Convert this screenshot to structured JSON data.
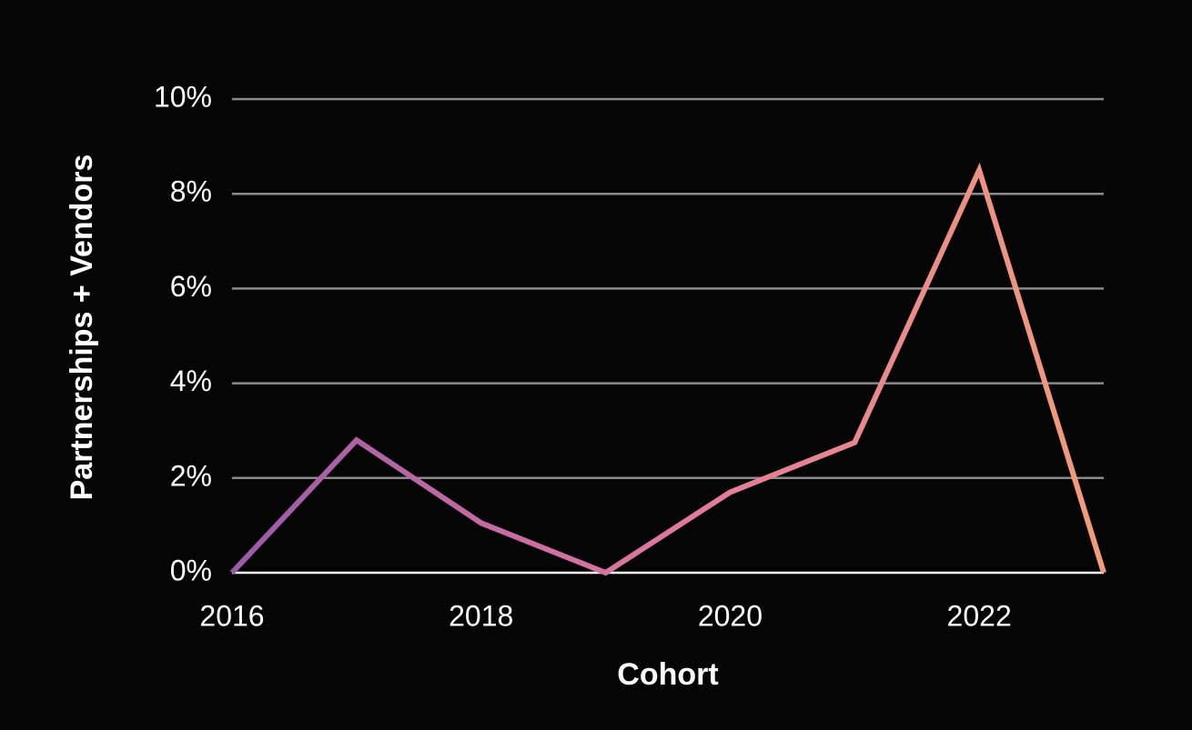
{
  "chart_data": {
    "type": "line",
    "x_label": "Cohort",
    "y_label": "Partnerships + Vendors",
    "x": [
      2016,
      2017,
      2018,
      2019,
      2020,
      2021,
      2022,
      2023
    ],
    "values": [
      0,
      2.8,
      1.05,
      0,
      1.7,
      2.75,
      8.5,
      0
    ],
    "colors": [
      "#9a5aa8",
      "#e0779e",
      "#f39c78"
    ],
    "xlim": [
      2016,
      2023
    ],
    "xticks": [
      2016,
      2018,
      2020,
      2022
    ],
    "ylim": [
      0,
      10
    ],
    "yticks": [
      {
        "value": 0,
        "label": "0%"
      },
      {
        "value": 2,
        "label": "2%"
      },
      {
        "value": 4,
        "label": "4%"
      },
      {
        "value": 6,
        "label": "6%"
      },
      {
        "value": 8,
        "label": "8%"
      },
      {
        "value": 10,
        "label": "10%"
      }
    ],
    "grid": true
  }
}
